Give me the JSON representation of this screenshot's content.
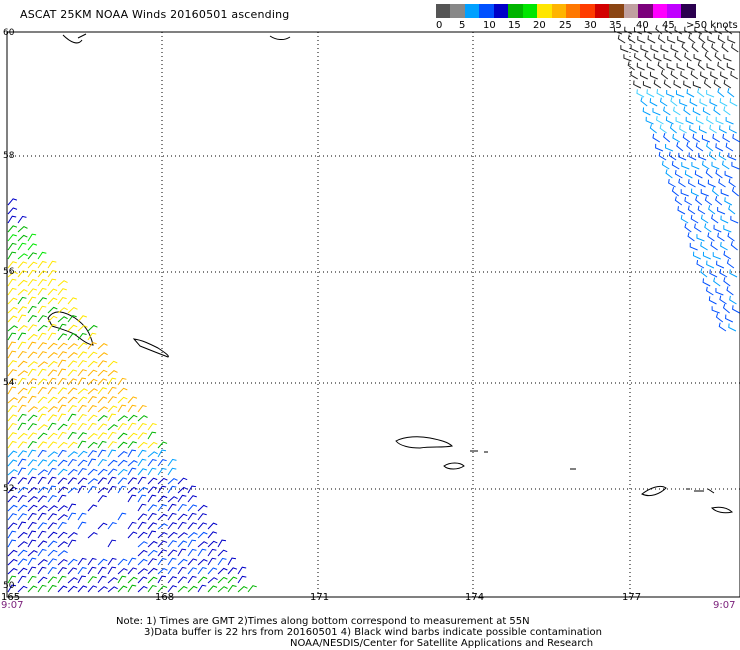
{
  "title": "ASCAT 25KM NOAA Winds 20160501 ascending",
  "colorbar": {
    "colors": [
      "#555555",
      "#888888",
      "#00a0ff",
      "#0050ff",
      "#0000c8",
      "#00b400",
      "#00e600",
      "#ffe600",
      "#ffb400",
      "#ff7800",
      "#ff3c00",
      "#d20000",
      "#8b4513",
      "#c0a0a0",
      "#7b007b",
      "#ff00ff",
      "#c000ff",
      "#2b004f"
    ],
    "labels": [
      "0",
      "5",
      "10",
      "15",
      "20",
      "25",
      "30",
      "35",
      "40",
      "45",
      ">50 knots"
    ]
  },
  "map": {
    "latitudes": [
      "60",
      "58",
      "56",
      "54",
      "52",
      "50"
    ],
    "longitudes": [
      "165",
      "168",
      "171",
      "174",
      "177"
    ],
    "time_left": "9:07",
    "time_right": "9:07"
  },
  "notes": {
    "line1": "Note: 1) Times are GMT 2)Times along bottom correspond to measurement at 55N",
    "line2": "3)Data buffer is 22 hrs from 20160501 4) Black wind barbs indicate possible contamination",
    "line3": "NOAA/NESDIS/Center for Satellite Applications and Research"
  }
}
